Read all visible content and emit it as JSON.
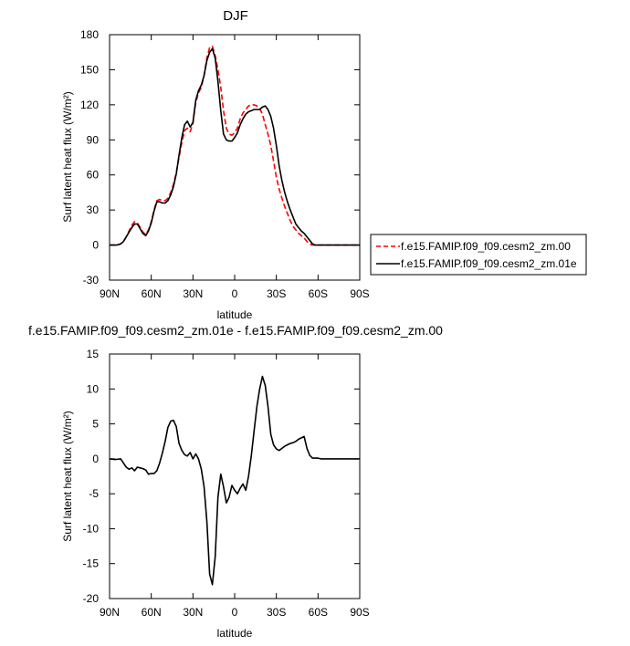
{
  "chart_data": [
    {
      "type": "line",
      "title": "DJF",
      "xlabel": "latitude",
      "ylabel": "Surf latent heat flux (W/m²)",
      "xlim": [
        90,
        -90
      ],
      "ylim": [
        -30,
        180
      ],
      "xticks": [
        90,
        60,
        30,
        0,
        -30,
        -60,
        -90
      ],
      "xtick_labels": [
        "90N",
        "60N",
        "30N",
        "0",
        "30S",
        "60S",
        "90S"
      ],
      "yticks": [
        -30,
        0,
        30,
        60,
        90,
        120,
        150,
        180
      ],
      "ytick_labels": [
        "-30",
        "0",
        "30",
        "60",
        "90",
        "120",
        "150",
        "180"
      ],
      "legend_placement": "right",
      "series": [
        {
          "name": "f.e15.FAMIP.f09_f09.cesm2_zm.00",
          "color": "#ff0000",
          "dash": "dashed",
          "x": [
            90,
            85,
            82,
            80,
            78,
            76,
            74,
            72,
            70,
            68,
            66,
            64,
            62,
            60,
            58,
            56,
            54,
            52,
            50,
            48,
            46,
            44,
            42,
            40,
            38,
            36,
            34,
            32,
            30,
            28,
            26,
            24,
            22,
            20,
            18,
            16,
            14,
            12,
            10,
            8,
            6,
            4,
            2,
            0,
            -2,
            -4,
            -6,
            -8,
            -10,
            -12,
            -14,
            -16,
            -18,
            -20,
            -22,
            -24,
            -26,
            -28,
            -30,
            -32,
            -34,
            -36,
            -38,
            -40,
            -42,
            -44,
            -46,
            -48,
            -50,
            -52,
            -54,
            -56,
            -58,
            -60,
            -62,
            -64,
            -66,
            -68,
            -70,
            -72,
            -75,
            -80,
            -85,
            -90
          ],
          "y": [
            0,
            0,
            1,
            3,
            7,
            12,
            17,
            20,
            19,
            15,
            11,
            9,
            13,
            20,
            30,
            38,
            39,
            38,
            38,
            40,
            45,
            52,
            62,
            75,
            88,
            98,
            100,
            97,
            104,
            122,
            130,
            135,
            145,
            160,
            169,
            170,
            162,
            150,
            135,
            115,
            100,
            95,
            94,
            96,
            100,
            108,
            113,
            116,
            119,
            120,
            120,
            119,
            117,
            112,
            103,
            95,
            85,
            72,
            58,
            48,
            40,
            33,
            27,
            21,
            16,
            13,
            10,
            8,
            6,
            3,
            1,
            0,
            0,
            0,
            0,
            0,
            0,
            0,
            0,
            0,
            0,
            0,
            0,
            0
          ]
        },
        {
          "name": "f.e15.FAMIP.f09_f09.cesm2_zm.01e",
          "color": "#000000",
          "dash": "solid",
          "x": [
            90,
            85,
            82,
            80,
            78,
            76,
            74,
            72,
            70,
            68,
            66,
            64,
            62,
            60,
            58,
            56,
            54,
            52,
            50,
            48,
            46,
            44,
            42,
            40,
            38,
            36,
            34,
            32,
            30,
            28,
            26,
            24,
            22,
            20,
            18,
            16,
            14,
            12,
            10,
            8,
            6,
            4,
            2,
            0,
            -2,
            -4,
            -6,
            -8,
            -10,
            -12,
            -14,
            -16,
            -18,
            -20,
            -22,
            -24,
            -26,
            -28,
            -30,
            -32,
            -34,
            -36,
            -38,
            -40,
            -42,
            -44,
            -46,
            -48,
            -50,
            -52,
            -54,
            -56,
            -58,
            -60,
            -62,
            -64,
            -66,
            -68,
            -70,
            -72,
            -75,
            -80,
            -85,
            -90
          ],
          "y": [
            0,
            0,
            1,
            3,
            7,
            11,
            15,
            18,
            18,
            14,
            10,
            8,
            12,
            19,
            29,
            37,
            37,
            36,
            36,
            38,
            43,
            50,
            61,
            77,
            92,
            103,
            106,
            101,
            105,
            124,
            132,
            137,
            145,
            158,
            165,
            168,
            160,
            140,
            115,
            95,
            90,
            89,
            89,
            92,
            96,
            103,
            108,
            112,
            114,
            115,
            116,
            116,
            116,
            118,
            119,
            116,
            110,
            100,
            85,
            68,
            55,
            45,
            37,
            30,
            24,
            18,
            15,
            12,
            10,
            7,
            4,
            1,
            0,
            0,
            0,
            0,
            0,
            0,
            0,
            0,
            0,
            0,
            0,
            0
          ]
        }
      ]
    },
    {
      "type": "line",
      "title": "f.e15.FAMIP.f09_f09.cesm2_zm.01e - f.e15.FAMIP.f09_f09.cesm2_zm.00",
      "xlabel": "latitude",
      "ylabel": "Surf latent heat flux (W/m²)",
      "xlim": [
        90,
        -90
      ],
      "ylim": [
        -20,
        15
      ],
      "xticks": [
        90,
        60,
        30,
        0,
        -30,
        -60,
        -90
      ],
      "xtick_labels": [
        "90N",
        "60N",
        "30N",
        "0",
        "30S",
        "60S",
        "90S"
      ],
      "yticks": [
        -20,
        -15,
        -10,
        -5,
        0,
        5,
        10,
        15
      ],
      "ytick_labels": [
        "-20",
        "-15",
        "-10",
        "-5",
        "0",
        "5",
        "10",
        "15"
      ],
      "series": [
        {
          "color": "#000000",
          "dash": "solid",
          "x": [
            90,
            86,
            82,
            80,
            78,
            76,
            74,
            72,
            70,
            68,
            66,
            64,
            62,
            60,
            58,
            56,
            54,
            52,
            50,
            48,
            46,
            44,
            42,
            40,
            38,
            36,
            34,
            32,
            30,
            28,
            26,
            24,
            22,
            20,
            18,
            16,
            14,
            12,
            10,
            8,
            6,
            4,
            2,
            0,
            -2,
            -4,
            -6,
            -8,
            -10,
            -12,
            -14,
            -16,
            -18,
            -20,
            -22,
            -24,
            -26,
            -28,
            -30,
            -32,
            -34,
            -36,
            -38,
            -40,
            -42,
            -44,
            -46,
            -48,
            -50,
            -52,
            -54,
            -56,
            -58,
            -60,
            -62,
            -64,
            -66,
            -68,
            -70,
            -75,
            -80,
            -85,
            -90
          ],
          "y": [
            0,
            -0.1,
            0,
            -0.6,
            -1.2,
            -1.5,
            -1.3,
            -1.7,
            -1.2,
            -1.3,
            -1.4,
            -1.6,
            -2.2,
            -2.1,
            -2.1,
            -1.7,
            -0.6,
            0.8,
            2.5,
            4.5,
            5.4,
            5.5,
            4.6,
            2.2,
            1.2,
            0.6,
            0.4,
            0.9,
            0,
            0.7,
            0,
            -1.5,
            -4.0,
            -9.0,
            -16.5,
            -18.0,
            -14.0,
            -5.5,
            -2.2,
            -4.0,
            -6.3,
            -5.5,
            -3.8,
            -4.5,
            -5.0,
            -4.2,
            -3.6,
            -4.5,
            -2.5,
            0.5,
            4.0,
            7.5,
            10.0,
            11.8,
            10.5,
            7.5,
            3.5,
            2.0,
            1.4,
            1.2,
            1.5,
            1.8,
            2.0,
            2.2,
            2.3,
            2.5,
            2.8,
            3.0,
            3.2,
            1.5,
            0.5,
            0.1,
            0.1,
            0.1,
            0.0,
            0.0,
            0.0,
            0.0,
            0.0,
            0.0,
            0.0,
            0.0,
            0.0
          ]
        }
      ]
    }
  ]
}
